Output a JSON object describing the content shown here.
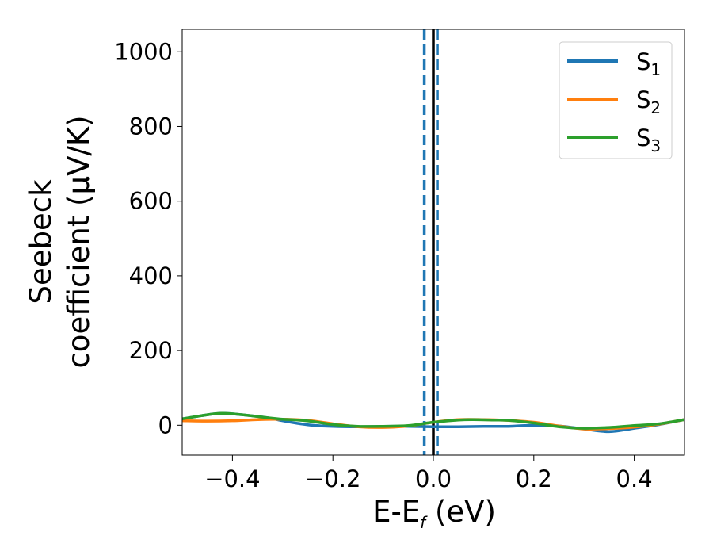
{
  "chart_data": {
    "type": "line",
    "xlabel": {
      "main": "E-E",
      "sub": "f",
      "rest": " (eV)"
    },
    "ylabel": {
      "line1": "Seebeck",
      "line2": "coefficient  (μV/K)"
    },
    "xlim": [
      -0.5,
      0.5
    ],
    "ylim": [
      -80,
      1060
    ],
    "xticks": [
      -0.4,
      -0.2,
      0.0,
      0.2,
      0.4
    ],
    "xtick_labels": [
      "−0.4",
      "−0.2",
      "0.0",
      "0.2",
      "0.4"
    ],
    "yticks": [
      0,
      200,
      400,
      600,
      800,
      1000
    ],
    "ytick_labels": [
      "0",
      "200",
      "400",
      "600",
      "800",
      "1000"
    ],
    "grid": false,
    "legend": "top-right",
    "vlines": [
      {
        "x": -0.018,
        "style": "dashed",
        "color": "#1f77b4"
      },
      {
        "x": 0.008,
        "style": "dashed",
        "color": "#1f77b4"
      },
      {
        "x": 0.0,
        "style": "solid",
        "color": "#000000"
      }
    ],
    "series": [
      {
        "name": "S",
        "sub": "1",
        "color": "#1f77b4",
        "x": [
          -0.5,
          -0.45,
          -0.42,
          -0.38,
          -0.33,
          -0.3,
          -0.27,
          -0.24,
          -0.2,
          -0.15,
          -0.1,
          -0.05,
          0.0,
          0.05,
          0.1,
          0.15,
          0.2,
          0.25,
          0.3,
          0.35,
          0.4,
          0.45,
          0.5
        ],
        "y": [
          17,
          28,
          32,
          28,
          20,
          12,
          5,
          0,
          -3,
          -4,
          -3,
          -3,
          -4,
          -4,
          -3,
          -3,
          0,
          -2,
          -10,
          -17,
          -8,
          2,
          15
        ]
      },
      {
        "name": "S",
        "sub": "2",
        "color": "#ff7f0e",
        "x": [
          -0.5,
          -0.45,
          -0.4,
          -0.35,
          -0.3,
          -0.25,
          -0.2,
          -0.15,
          -0.1,
          -0.05,
          0.0,
          0.05,
          0.1,
          0.15,
          0.2,
          0.25,
          0.3,
          0.35,
          0.4,
          0.45,
          0.5
        ],
        "y": [
          12,
          11,
          12,
          15,
          16,
          13,
          4,
          -4,
          -6,
          -2,
          8,
          15,
          15,
          13,
          8,
          -2,
          -10,
          -9,
          -5,
          3,
          15
        ]
      },
      {
        "name": "S",
        "sub": "3",
        "color": "#2ca02c",
        "x": [
          -0.5,
          -0.45,
          -0.42,
          -0.38,
          -0.33,
          -0.3,
          -0.27,
          -0.24,
          -0.2,
          -0.15,
          -0.1,
          -0.05,
          0.0,
          0.05,
          0.08,
          0.12,
          0.15,
          0.2,
          0.25,
          0.3,
          0.35,
          0.4,
          0.45,
          0.5
        ],
        "y": [
          17,
          28,
          32,
          28,
          20,
          16,
          14,
          10,
          2,
          -3,
          -3,
          -1,
          8,
          14,
          15,
          14,
          13,
          6,
          -4,
          -8,
          -6,
          -1,
          4,
          15
        ]
      }
    ]
  }
}
